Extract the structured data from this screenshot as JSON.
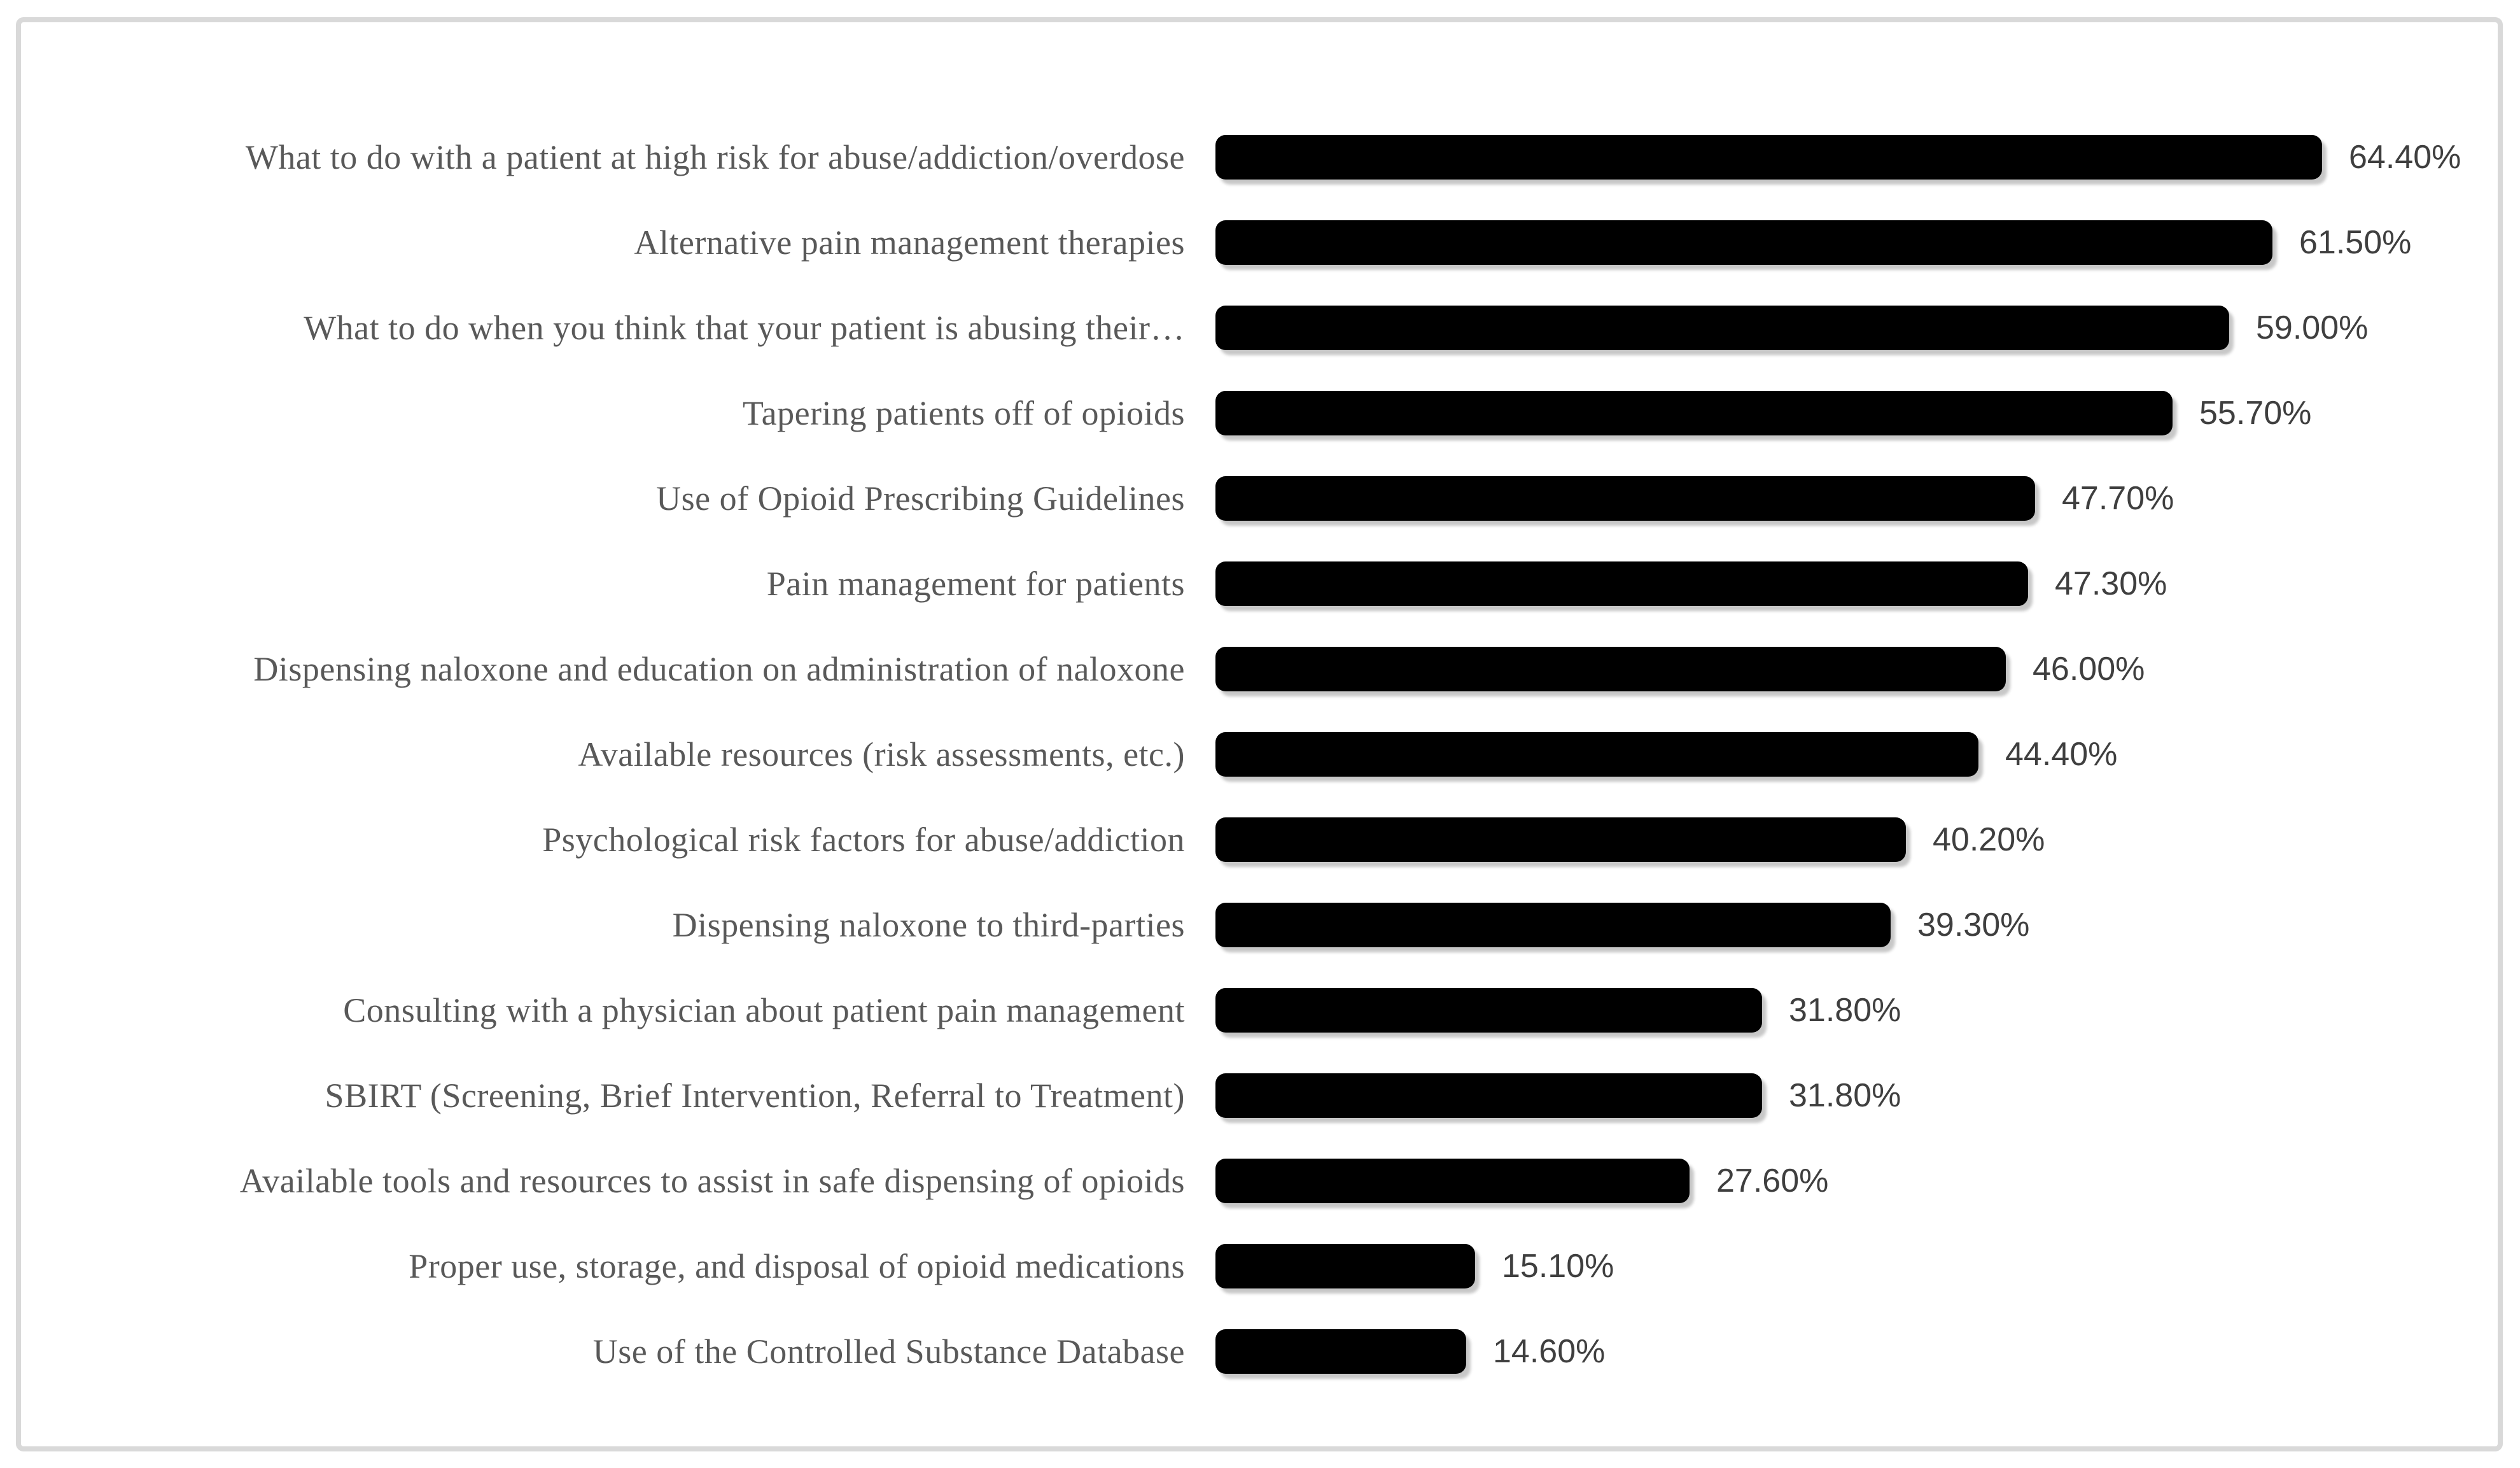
{
  "chart_data": {
    "type": "bar",
    "orientation": "horizontal",
    "title": "",
    "xlabel": "",
    "ylabel": "",
    "xlim": [
      0,
      70
    ],
    "grid": false,
    "legend": false,
    "axis_visible": false,
    "bar_color": "#000000",
    "category_label_color": "#595959",
    "value_label_color": "#3f3f3f",
    "frame_border_color": "#d9d9d9",
    "background_color": "#ffffff",
    "categories": [
      "What to do with a patient at high risk for abuse/addiction/overdose",
      "Alternative pain management therapies",
      "What to do when you think that your patient is abusing their…",
      "Tapering patients off of opioids",
      "Use of Opioid Prescribing Guidelines",
      "Pain management for patients",
      "Dispensing naloxone and education on administration of naloxone",
      "Available resources (risk assessments, etc.)",
      "Psychological risk factors for abuse/addiction",
      "Dispensing naloxone to third-parties",
      "Consulting with a physician about patient pain management",
      "SBIRT (Screening, Brief Intervention, Referral to Treatment)",
      "Available tools and resources to assist in safe dispensing of opioids",
      "Proper use, storage, and disposal of opioid medications",
      "Use of the Controlled Substance Database"
    ],
    "values": [
      64.4,
      61.5,
      59.0,
      55.7,
      47.7,
      47.3,
      46.0,
      44.4,
      40.2,
      39.3,
      31.8,
      31.8,
      27.6,
      15.1,
      14.6
    ],
    "value_labels": [
      "64.40%",
      "61.50%",
      "59.00%",
      "55.70%",
      "47.70%",
      "47.30%",
      "46.00%",
      "44.40%",
      "40.20%",
      "39.30%",
      "31.80%",
      "31.80%",
      "27.60%",
      "15.10%",
      "14.60%"
    ]
  }
}
